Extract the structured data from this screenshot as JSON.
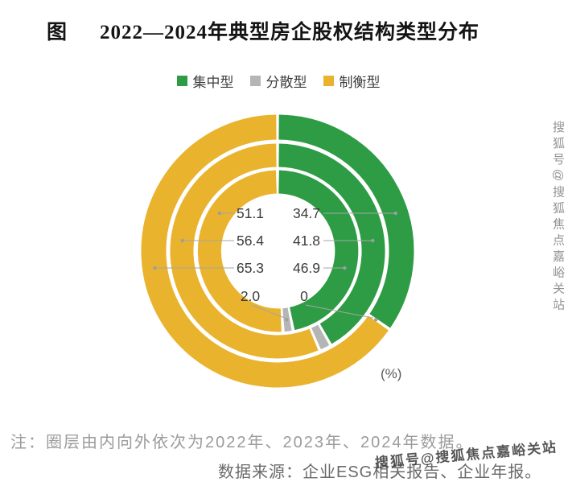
{
  "title": {
    "prefix": "图",
    "text": "2022—2024年典型房企股权结构类型分布"
  },
  "legend": [
    {
      "label": "集中型",
      "color": "#2e9c44"
    },
    {
      "label": "分散型",
      "color": "#b5b5b5"
    },
    {
      "label": "制衡型",
      "color": "#e9b32d"
    }
  ],
  "chart_data": {
    "type": "pie",
    "subtype": "concentric-donut-three-rings",
    "title": "2022—2024年典型房企股权结构类型分布",
    "unit_label": "(%)",
    "series_order_clockwise_from_top": [
      "集中型",
      "分散型",
      "制衡型"
    ],
    "colors": {
      "集中型": "#2e9c44",
      "分散型": "#b5b5b5",
      "制衡型": "#e9b32d"
    },
    "rings": [
      {
        "year": "2022",
        "position": "inner",
        "values": {
          "集中型": 46.9,
          "分散型": 2.0,
          "制衡型": 51.1
        }
      },
      {
        "year": "2023",
        "position": "middle",
        "values": {
          "集中型": 41.8,
          "分散型": 1.8,
          "制衡型": 56.4
        }
      },
      {
        "year": "2024",
        "position": "outer",
        "values": {
          "集中型": 34.7,
          "分散型": 0,
          "制衡型": 65.3
        }
      }
    ],
    "visible_value_labels": {
      "left_column": [
        "51.1",
        "56.4",
        "65.3",
        "2.0"
      ],
      "right_column": [
        "34.7",
        "41.8",
        "46.9",
        "0"
      ]
    }
  },
  "footnotes": {
    "note": "注：圈层由内向外依次为2022年、2023年、2024年数据。",
    "source": "数据来源：企业ESG相关报告、企业年报。"
  },
  "watermarks": {
    "side_text": "搜狐号@搜狐焦点嘉峪关站",
    "corner_text": "搜狐号@搜狐焦点嘉峪关站"
  }
}
